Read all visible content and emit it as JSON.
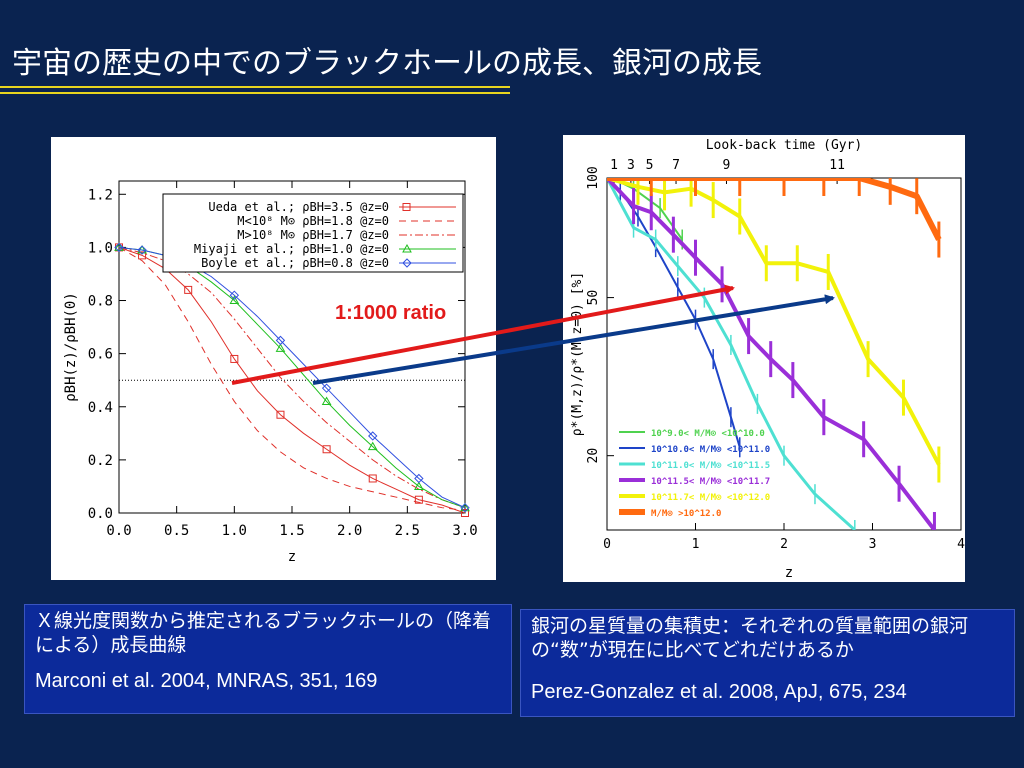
{
  "slide": {
    "title": "宇宙の歴史の中でのブラックホールの成長、銀河の成長",
    "accent_color": "#e8d51f",
    "background_color": "#0a2350"
  },
  "annotation": {
    "ratio_label": "1:1000 ratio",
    "ratio_color": "#e21a1a",
    "arrow_colors": [
      "#e21a1a",
      "#0a3a8a"
    ]
  },
  "captions": {
    "left": {
      "text": "Ｘ線光度関数から推定されるブラックホールの（降着による）成長曲線",
      "citation": "Marconi et al. 2004, MNRAS, 351, 169"
    },
    "right": {
      "text": "銀河の星質量の集積史：それぞれの質量範囲の銀河の“数”が現在に比べてどれだけあるか",
      "citation": "Perez-Gonzalez et al. 2008, ApJ, 675, 234"
    }
  },
  "chart_data": [
    {
      "type": "line",
      "xlabel": "z",
      "ylabel": "ρBH(z)/ρBH(0)",
      "xlim": [
        0,
        3
      ],
      "ylim": [
        0,
        1.25
      ],
      "x_ticks": [
        "0.0",
        "0.5",
        "1.0",
        "1.5",
        "2.0",
        "2.5",
        "3.0"
      ],
      "y_ticks": [
        "0.0",
        "0.2",
        "0.4",
        "0.6",
        "0.8",
        "1.0",
        "1.2"
      ],
      "reference_line": {
        "y": 0.5,
        "style": "dotted"
      },
      "legend_position": "top-right",
      "series": [
        {
          "name": "Ueda et al.; ρBH=3.5 @z=0",
          "color": "#e0302a",
          "dash": "",
          "marker": "square",
          "x": [
            0,
            0.2,
            0.4,
            0.6,
            0.8,
            1.0,
            1.2,
            1.4,
            1.6,
            1.8,
            2.0,
            2.2,
            2.4,
            2.6,
            2.8,
            3.0
          ],
          "y": [
            1.0,
            0.97,
            0.92,
            0.84,
            0.72,
            0.58,
            0.46,
            0.37,
            0.3,
            0.24,
            0.18,
            0.13,
            0.09,
            0.05,
            0.03,
            0.0
          ]
        },
        {
          "name": "M<10⁸ M⊙ ρBH=1.8 @z=0",
          "color": "#e0302a",
          "dash": "7,5",
          "marker": "none",
          "x": [
            0,
            0.2,
            0.4,
            0.6,
            0.8,
            1.0,
            1.2,
            1.4,
            1.6,
            1.8,
            2.0,
            2.2,
            2.4,
            2.6,
            2.8,
            3.0
          ],
          "y": [
            1.0,
            0.95,
            0.86,
            0.72,
            0.56,
            0.42,
            0.31,
            0.23,
            0.17,
            0.13,
            0.1,
            0.08,
            0.06,
            0.04,
            0.02,
            0.01
          ]
        },
        {
          "name": "M>10⁸ M⊙ ρBH=1.7 @z=0",
          "color": "#e0302a",
          "dash": "8,3,2,3",
          "marker": "none",
          "x": [
            0,
            0.2,
            0.4,
            0.6,
            0.8,
            1.0,
            1.2,
            1.4,
            1.6,
            1.8,
            2.0,
            2.2,
            2.4,
            2.6,
            2.8,
            3.0
          ],
          "y": [
            1.0,
            0.98,
            0.95,
            0.9,
            0.83,
            0.73,
            0.62,
            0.51,
            0.42,
            0.34,
            0.27,
            0.2,
            0.14,
            0.09,
            0.05,
            0.02
          ]
        },
        {
          "name": "Miyaji et al.; ρBH=1.0 @z=0",
          "color": "#1fbf1f",
          "dash": "",
          "marker": "triangle",
          "x": [
            0,
            0.2,
            0.4,
            0.6,
            0.8,
            1.0,
            1.2,
            1.4,
            1.6,
            1.8,
            2.0,
            2.2,
            2.4,
            2.6,
            2.8,
            3.0
          ],
          "y": [
            1.0,
            0.99,
            0.97,
            0.93,
            0.87,
            0.8,
            0.71,
            0.62,
            0.52,
            0.42,
            0.33,
            0.25,
            0.17,
            0.1,
            0.05,
            0.02
          ]
        },
        {
          "name": "Boyle et al.; ρBH=0.8 @z=0",
          "color": "#3050e0",
          "dash": "",
          "marker": "diamond",
          "x": [
            0,
            0.2,
            0.4,
            0.6,
            0.8,
            1.0,
            1.2,
            1.4,
            1.6,
            1.8,
            2.0,
            2.2,
            2.4,
            2.6,
            2.8,
            3.0
          ],
          "y": [
            1.0,
            0.99,
            0.97,
            0.94,
            0.89,
            0.82,
            0.74,
            0.65,
            0.56,
            0.47,
            0.38,
            0.29,
            0.21,
            0.13,
            0.06,
            0.02
          ]
        }
      ]
    },
    {
      "type": "line",
      "title": "Look-back time (Gyr)",
      "xlabel": "z",
      "ylabel": "ρ*(M,z)/ρ*(M,z=0) [%]",
      "xlim": [
        0,
        4
      ],
      "y_log": true,
      "ylim": [
        13,
        100
      ],
      "x_ticks": [
        "0",
        "1",
        "2",
        "3",
        "4"
      ],
      "y_ticks": [
        "20",
        "50",
        "100"
      ],
      "top_ticks": [
        "1",
        "3",
        "5",
        "7",
        "9",
        "11"
      ],
      "top_tick_z": [
        0.08,
        0.27,
        0.48,
        0.78,
        1.35,
        2.6
      ],
      "legend_position": "bottom-left",
      "series": [
        {
          "name": "10^9.0< M/M⊙ <10^10.0",
          "color": "#4fd24f",
          "width": 2,
          "x": [
            0.05,
            0.3,
            0.6,
            0.85
          ],
          "y": [
            100,
            94,
            84,
            70
          ]
        },
        {
          "name": "10^10.0< M/M⊙ <10^11.0",
          "color": "#1e44c8",
          "width": 2,
          "x": [
            0,
            0.15,
            0.35,
            0.55,
            0.8,
            1.0,
            1.2,
            1.4,
            1.5
          ],
          "y": [
            100,
            93,
            80,
            67,
            53,
            44,
            35,
            25,
            21
          ]
        },
        {
          "name": "10^11.0< M/M⊙ <10^11.5",
          "color": "#4ee0d2",
          "width": 3,
          "x": [
            0,
            0.3,
            0.55,
            0.8,
            1.1,
            1.4,
            1.7,
            2.0,
            2.35,
            2.8
          ],
          "y": [
            100,
            75,
            70,
            60,
            50,
            38,
            27,
            20,
            16,
            13
          ]
        },
        {
          "name": "10^11.5< M/M⊙ <10^11.7",
          "color": "#9a2fd8",
          "width": 4,
          "x": [
            0,
            0.3,
            0.5,
            0.75,
            1.0,
            1.3,
            1.6,
            1.85,
            2.1,
            2.45,
            2.9,
            3.3,
            3.7
          ],
          "y": [
            100,
            85,
            82,
            72,
            63,
            54,
            40,
            35,
            31,
            25,
            22,
            17,
            13
          ]
        },
        {
          "name": "10^11.7< M/M⊙ <10^12.0",
          "color": "#f2f20a",
          "width": 4,
          "x": [
            0,
            0.35,
            0.65,
            0.95,
            1.2,
            1.5,
            1.8,
            2.15,
            2.5,
            2.95,
            3.35,
            3.75
          ],
          "y": [
            100,
            95,
            92,
            94,
            88,
            80,
            61,
            61,
            58,
            35,
            28,
            19
          ]
        },
        {
          "name": "M/M⊙ >10^12.0",
          "color": "#ff6a10",
          "width": 6,
          "x": [
            0,
            0.5,
            1.0,
            1.5,
            2.0,
            2.45,
            2.85,
            3.2,
            3.5,
            3.75
          ],
          "y": [
            100,
            100,
            100,
            100,
            100,
            100,
            100,
            95,
            90,
            70
          ]
        }
      ]
    }
  ]
}
